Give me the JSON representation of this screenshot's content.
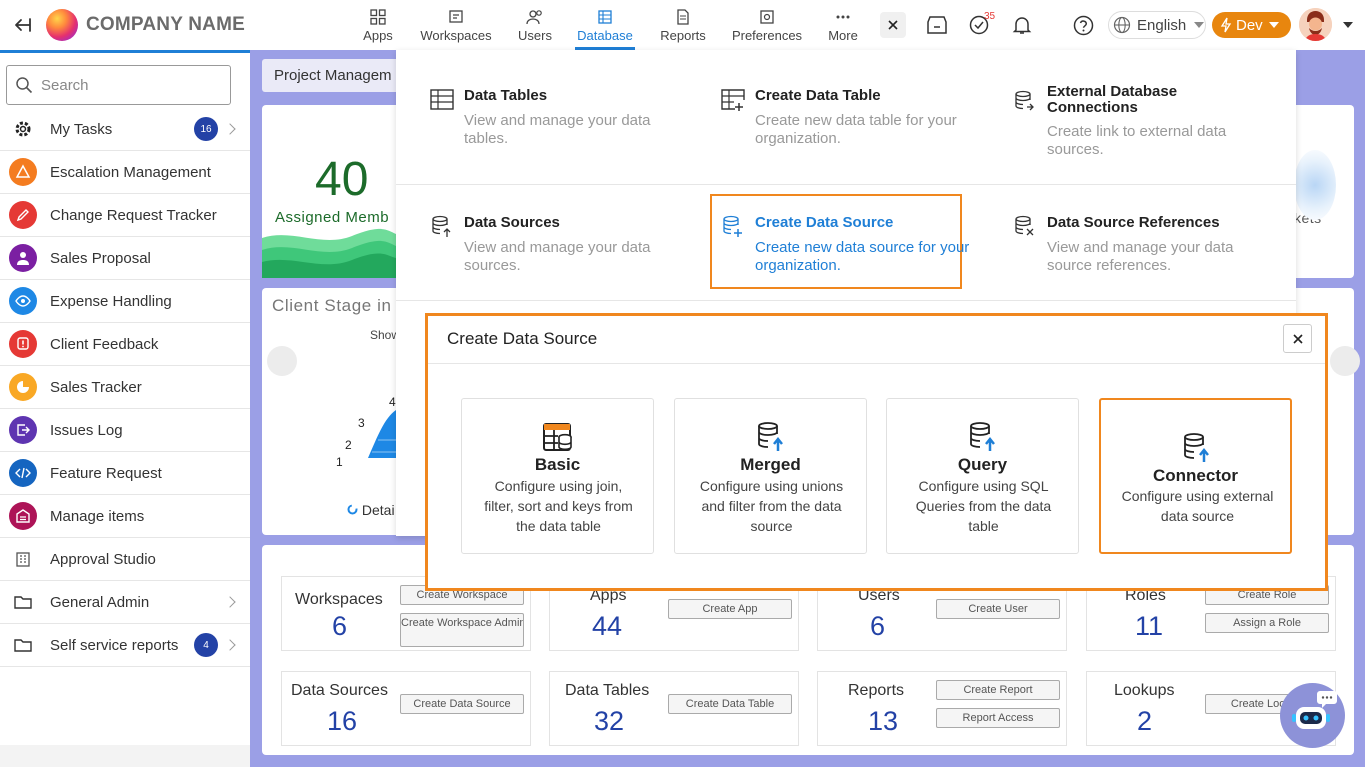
{
  "header": {
    "company_name": "COMPANY NAME",
    "nav": [
      {
        "label": "Apps",
        "icon": "apps-grid-icon"
      },
      {
        "label": "Workspaces",
        "icon": "workspace-icon"
      },
      {
        "label": "Users",
        "icon": "users-icon"
      },
      {
        "label": "Database",
        "icon": "database-icon",
        "active": true
      },
      {
        "label": "Reports",
        "icon": "report-icon"
      },
      {
        "label": "Preferences",
        "icon": "preferences-icon"
      },
      {
        "label": "More",
        "icon": "more-dots-icon"
      }
    ],
    "tasks_badge": "35",
    "language": "English",
    "env_label": "Dev"
  },
  "sidebar": {
    "search_placeholder": "Search",
    "items": [
      {
        "label": "My Tasks",
        "count": "16",
        "icon": "gear-icon",
        "color": "#222222"
      },
      {
        "label": "Escalation Management",
        "icon": "escalation-icon",
        "color": "#f47c20"
      },
      {
        "label": "Change Request Tracker",
        "icon": "edit-icon",
        "color": "#e53935"
      },
      {
        "label": "Sales Proposal",
        "icon": "person-icon",
        "color": "#7b1fa2"
      },
      {
        "label": "Expense Handling",
        "icon": "eye-icon",
        "color": "#1e88e5"
      },
      {
        "label": "Client Feedback",
        "icon": "alert-icon",
        "color": "#e53935"
      },
      {
        "label": "Sales Tracker",
        "icon": "chart-icon",
        "color": "#f9a825"
      },
      {
        "label": "Issues Log",
        "icon": "export-icon",
        "color": "#5e35b1"
      },
      {
        "label": "Feature Request",
        "icon": "code-icon",
        "color": "#1565c0"
      },
      {
        "label": "Manage items",
        "icon": "warehouse-icon",
        "color": "#ad1457"
      },
      {
        "label": "Approval Studio",
        "icon": "building-icon",
        "color": "#555555"
      },
      {
        "label": "General Admin",
        "icon": "folder-icon",
        "color": "#333333"
      },
      {
        "label": "Self service reports",
        "count": "4",
        "icon": "folder-icon",
        "color": "#333333"
      }
    ]
  },
  "dashboard": {
    "project_title": "Project Managem",
    "assigned_count": "40",
    "assigned_label": "Assigned Memb",
    "tickets_label": "kets",
    "client_stage_title": "Client Stage in",
    "show_label": "Show",
    "axis_labels": [
      "4",
      "3",
      "2",
      "1"
    ],
    "detail_label": "Detai",
    "stats": [
      {
        "label": "Workspaces",
        "value": "6",
        "buttons": [
          "Create Workspace",
          "Create Workspace Admin"
        ]
      },
      {
        "label": "Apps",
        "value": "44",
        "buttons": [
          "Create App"
        ]
      },
      {
        "label": "Users",
        "value": "6",
        "buttons": [
          "Create User"
        ]
      },
      {
        "label": "Roles",
        "value": "11",
        "buttons": [
          "Create Role",
          "Assign a Role"
        ]
      },
      {
        "label": "Data Sources",
        "value": "16",
        "buttons": [
          "Create Data Source"
        ]
      },
      {
        "label": "Data Tables",
        "value": "32",
        "buttons": [
          "Create Data Table"
        ]
      },
      {
        "label": "Reports",
        "value": "13",
        "buttons": [
          "Create Report",
          "Report Access"
        ]
      },
      {
        "label": "Lookups",
        "value": "2",
        "buttons": [
          "Create Lookup"
        ]
      }
    ]
  },
  "database_menu": {
    "items": [
      {
        "title": "Data Tables",
        "desc": "View and manage your data tables."
      },
      {
        "title": "Create Data Table",
        "desc": "Create new data table for your organization."
      },
      {
        "title": "External Database Connections",
        "desc": "Create link to external data sources."
      },
      {
        "title": "Data Sources",
        "desc": "View and manage your data sources."
      },
      {
        "title": "Create Data Source",
        "desc": "Create new data source for your organization.",
        "highlighted": true
      },
      {
        "title": "Data Source References",
        "desc": "View and manage your data source references."
      }
    ],
    "accent": "#1f7fd6"
  },
  "modal": {
    "title": "Create Data Source",
    "options": [
      {
        "name": "Basic",
        "desc": "Configure using join, filter, sort and keys from the data table"
      },
      {
        "name": "Merged",
        "desc": "Configure using unions and filter from the data source"
      },
      {
        "name": "Query",
        "desc": "Configure using SQL Queries from the data table"
      },
      {
        "name": "Connector",
        "desc": "Configure using external data source",
        "selected": true
      }
    ],
    "highlight_color": "#f0871e"
  }
}
